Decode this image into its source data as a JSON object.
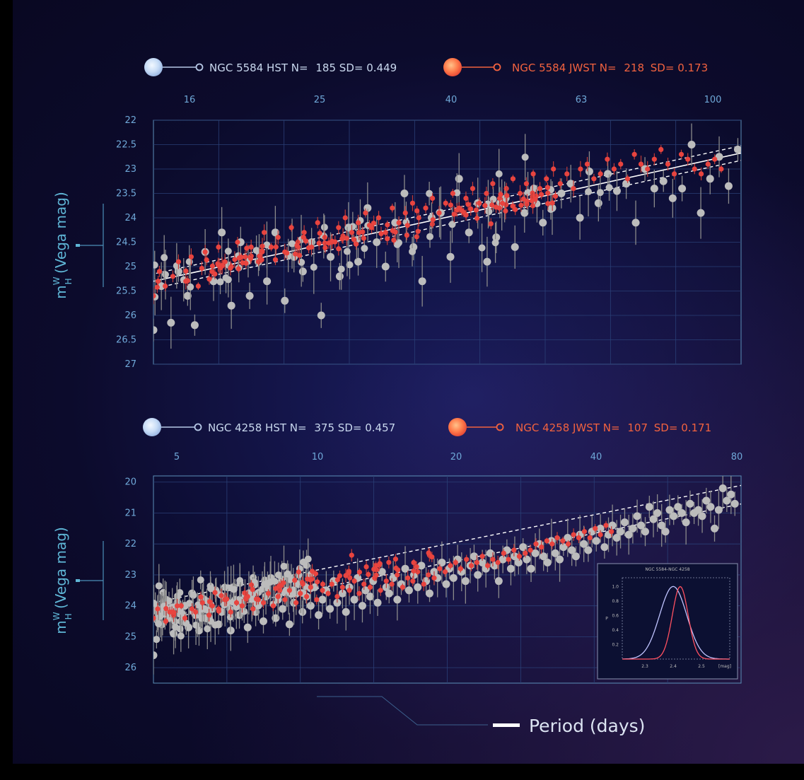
{
  "colors": {
    "hst": "#bcbcbc",
    "jwst": "#e8443f",
    "tick_text": "#6fa8d8",
    "legend_hst_text": "#c9d8ee",
    "legend_jwst_text": "#f2623f",
    "axis_label": "#5fb6d6"
  },
  "panels": [
    {
      "legend": {
        "hst": {
          "galaxy": "NGC 5584",
          "telescope": "HST",
          "n_label": "N=",
          "n": "185",
          "sd_label": "SD=",
          "sd": "0.449"
        },
        "jwst": {
          "galaxy": "NGC 5584",
          "telescope": "JWST",
          "n_label": "N=",
          "n": "218",
          "sd_label": "SD=",
          "sd": "0.173"
        }
      },
      "ylabel": "m_H^W (Vega mag)",
      "ylabel_main": "m",
      "ylabel_sup": "W",
      "ylabel_sub": "H",
      "ylabel_rest": " (Vega mag)"
    },
    {
      "legend": {
        "hst": {
          "galaxy": "NGC 4258",
          "telescope": "HST",
          "n_label": "N=",
          "n": "375",
          "sd_label": "SD=",
          "sd": "0.457"
        },
        "jwst": {
          "galaxy": "NGC 4258",
          "telescope": "JWST",
          "n_label": "N=",
          "n": "107",
          "sd_label": "SD=",
          "sd": "0.171"
        }
      },
      "ylabel": "m_H^W (Vega mag)",
      "ylabel_main": "m",
      "ylabel_sup": "W",
      "ylabel_sub": "H",
      "ylabel_rest": " (Vega mag)"
    }
  ],
  "xlabel": "Period (days)",
  "chart_data": [
    {
      "type": "scatter",
      "x_scale": "log",
      "x_ticks": [
        "16",
        "25",
        "40",
        "63",
        "100"
      ],
      "y_ticks": [
        "22",
        "22.5",
        "23",
        "23.5",
        "24",
        "24.5",
        "25",
        "25.5",
        "26",
        "26.5",
        "27"
      ],
      "xlim": [
        16,
        100
      ],
      "ylim": [
        27,
        22
      ],
      "y_inverted": true,
      "xlabel": "Period (days)",
      "ylabel": "m_H^W (Vega mag)",
      "fit": {
        "slope_per_log10P": -3.3,
        "intercept_at_P16": 25.3,
        "band_halfwidth": 0.15
      },
      "series": [
        {
          "name": "NGC 5584 HST",
          "x": [
            16.0,
            16.4,
            16.9,
            17.3,
            17.8,
            18.2,
            18.8,
            19.3,
            19.8,
            20.4,
            21.0,
            21.6,
            22.2,
            22.8,
            23.4,
            24.1,
            24.8,
            25.5,
            26.2,
            27.0,
            27.8,
            28.6,
            29.4,
            30.3,
            31.2,
            32.1,
            33.0,
            34.0,
            35.0,
            36.0,
            37.0,
            38.1,
            39.2,
            40.4,
            41.5,
            42.8,
            44.0,
            45.3,
            46.6,
            48.0,
            49.4,
            50.9,
            52.4,
            53.9,
            55.5,
            57.1,
            58.8,
            60.5,
            62.3,
            64.1,
            66.0,
            67.9,
            69.9,
            72.0,
            74.1,
            76.3,
            78.5,
            80.8,
            83.2,
            85.7,
            88.2,
            90.8,
            93.4,
            96.2,
            99.0
          ],
          "y": [
            26.3,
            25.4,
            26.15,
            25.1,
            25.6,
            26.2,
            24.7,
            25.3,
            24.3,
            25.8,
            24.5,
            25.6,
            24.9,
            25.3,
            24.3,
            25.7,
            24.8,
            25.1,
            24.5,
            26.0,
            24.8,
            25.2,
            24.2,
            24.9,
            23.8,
            24.5,
            25.0,
            24.1,
            23.5,
            24.6,
            25.3,
            24.0,
            23.9,
            24.8,
            23.2,
            24.3,
            23.7,
            24.9,
            24.4,
            23.6,
            24.6,
            23.9,
            23.4,
            24.1,
            23.8,
            23.5,
            23.3,
            24.0,
            23.05,
            23.7,
            23.1,
            23.45,
            23.3,
            24.1,
            23.0,
            23.4,
            23.25,
            23.6,
            23.4,
            22.5,
            23.9,
            23.2,
            22.75,
            23.35,
            22.6
          ]
        },
        {
          "name": "NGC 5584 JWST",
          "x": [
            16.0,
            16.3,
            16.6,
            17.0,
            17.3,
            17.7,
            18.0,
            18.4,
            18.8,
            19.2,
            19.6,
            20.0,
            20.4,
            20.8,
            21.3,
            21.7,
            22.2,
            22.6,
            23.1,
            23.6,
            24.1,
            24.6,
            25.1,
            25.6,
            26.2,
            26.7,
            27.3,
            27.9,
            28.5,
            29.1,
            29.7,
            30.3,
            31.0,
            31.6,
            32.3,
            33.0,
            33.7,
            34.4,
            35.1,
            35.9,
            36.6,
            37.4,
            38.2,
            39.0,
            39.8,
            40.7,
            41.5,
            42.4,
            43.3,
            44.2,
            45.2,
            46.1,
            47.1,
            48.1,
            49.1,
            50.2,
            51.2,
            52.3,
            53.4,
            54.5,
            55.7,
            56.9,
            58.1,
            59.3,
            60.6,
            61.9,
            63.2,
            64.5,
            65.9,
            67.3,
            68.7,
            70.2,
            71.7,
            73.2,
            74.7,
            76.3,
            77.9,
            79.6,
            81.2,
            83.0,
            84.7,
            86.5,
            88.3,
            90.2,
            92.1,
            94.0
          ],
          "y": [
            25.6,
            25.1,
            25.4,
            25.2,
            24.9,
            25.3,
            24.8,
            25.4,
            24.7,
            25.1,
            24.6,
            24.9,
            25.0,
            24.5,
            24.8,
            24.6,
            24.9,
            24.3,
            24.6,
            24.4,
            24.7,
            24.2,
            24.5,
            24.3,
            24.6,
            24.1,
            24.4,
            24.5,
            24.2,
            24.0,
            24.3,
            24.1,
            23.9,
            24.2,
            24.0,
            24.3,
            23.8,
            24.1,
            23.9,
            23.7,
            24.0,
            23.8,
            23.6,
            23.9,
            23.7,
            23.5,
            23.8,
            23.6,
            23.4,
            23.7,
            23.5,
            23.3,
            23.6,
            23.4,
            23.2,
            23.5,
            23.3,
            23.1,
            23.4,
            23.2,
            23.0,
            23.3,
            23.1,
            23.4,
            23.0,
            22.9,
            23.2,
            23.1,
            22.8,
            23.0,
            22.9,
            23.2,
            22.7,
            22.9,
            23.0,
            22.8,
            22.6,
            22.9,
            23.1,
            22.7,
            22.8,
            23.0,
            23.1,
            22.9,
            22.8,
            23.0
          ]
        }
      ]
    },
    {
      "type": "scatter",
      "x_scale": "log",
      "x_ticks": [
        "5",
        "10",
        "20",
        "40",
        "80"
      ],
      "y_ticks": [
        "20",
        "21",
        "22",
        "23",
        "24",
        "25",
        "26"
      ],
      "xlim": [
        5,
        80
      ],
      "ylim": [
        26.5,
        19.8
      ],
      "y_inverted": true,
      "xlabel": "Period (days)",
      "ylabel": "m_H^W (Vega mag)",
      "fit": {
        "slope_per_log10P": -3.15,
        "intercept_at_P5": 24.2,
        "band_halfwidth": 0.3
      },
      "series": [
        {
          "name": "NGC 4258 HST",
          "x": [
            5.0,
            5.1,
            5.2,
            5.3,
            5.4,
            5.5,
            5.6,
            5.7,
            5.8,
            5.9,
            6.0,
            6.1,
            6.2,
            6.3,
            6.4,
            6.6,
            6.7,
            6.8,
            6.9,
            7.1,
            7.2,
            7.3,
            7.5,
            7.6,
            7.8,
            7.9,
            8.1,
            8.2,
            8.4,
            8.5,
            8.7,
            8.9,
            9.0,
            9.2,
            9.4,
            9.5,
            9.7,
            9.9,
            10.1,
            10.3,
            10.5,
            10.7,
            10.9,
            11.1,
            11.3,
            11.5,
            11.7,
            11.9,
            12.2,
            12.4,
            12.6,
            12.9,
            13.1,
            13.4,
            13.6,
            13.9,
            14.1,
            14.4,
            14.7,
            15.0,
            15.2,
            15.5,
            15.8,
            16.1,
            16.4,
            16.7,
            17.1,
            17.4,
            17.7,
            18.1,
            18.4,
            18.8,
            19.1,
            19.5,
            19.9,
            20.2,
            20.6,
            21.0,
            21.4,
            21.8,
            22.3,
            22.7,
            23.1,
            23.6,
            24.0,
            24.5,
            25.0,
            25.5,
            26.0,
            26.5,
            27.0,
            27.5,
            28.0,
            28.6,
            29.1,
            29.7,
            30.3,
            30.9,
            31.5,
            32.1,
            32.7,
            33.3,
            34.0,
            34.6,
            35.3,
            36.0,
            36.7,
            37.4,
            38.1,
            38.9,
            39.6,
            40.4,
            41.2,
            42.0,
            42.8,
            43.6,
            44.5,
            45.3,
            46.2,
            47.1,
            48.0,
            49.0,
            49.9,
            50.9,
            51.9,
            52.9,
            53.9,
            55.0,
            56.0,
            57.1,
            58.2,
            59.4,
            60.5,
            61.7,
            62.9,
            64.1,
            65.4,
            66.6,
            67.9,
            69.3,
            70.6,
            72.0,
            73.4,
            74.8,
            76.3,
            77.7
          ],
          "y": [
            25.6,
            24.2,
            24.6,
            23.8,
            24.4,
            24.9,
            23.9,
            24.5,
            24.0,
            24.7,
            23.6,
            24.3,
            24.8,
            23.8,
            24.4,
            24.1,
            23.5,
            24.6,
            24.2,
            23.9,
            24.8,
            23.4,
            24.3,
            24.0,
            24.7,
            23.6,
            24.2,
            23.9,
            24.5,
            23.7,
            23.1,
            24.4,
            23.8,
            24.1,
            23.5,
            24.6,
            23.9,
            23.3,
            24.2,
            23.7,
            24.0,
            23.4,
            24.3,
            23.8,
            23.5,
            24.1,
            23.2,
            23.9,
            23.6,
            24.2,
            23.4,
            23.8,
            23.1,
            24.0,
            23.5,
            23.7,
            23.2,
            23.9,
            22.9,
            23.4,
            23.6,
            23.1,
            23.8,
            23.3,
            22.8,
            23.5,
            23.0,
            23.4,
            22.7,
            23.2,
            23.6,
            22.9,
            23.1,
            22.6,
            23.3,
            22.8,
            23.1,
            22.5,
            22.9,
            23.2,
            22.7,
            22.4,
            23.0,
            22.6,
            22.8,
            22.3,
            22.7,
            23.2,
            22.5,
            22.2,
            22.8,
            22.4,
            22.6,
            22.1,
            22.5,
            22.8,
            22.3,
            22.0,
            22.4,
            22.6,
            21.9,
            22.3,
            22.5,
            22.1,
            21.8,
            22.2,
            22.4,
            21.7,
            22.0,
            22.2,
            21.6,
            21.9,
            21.5,
            22.1,
            21.7,
            21.4,
            21.8,
            21.6,
            21.3,
            21.7,
            21.5,
            21.1,
            21.4,
            21.6,
            20.8,
            21.2,
            21.0,
            21.4,
            21.6,
            20.9,
            21.1,
            20.8,
            21.0,
            21.3,
            20.7,
            21.0,
            20.9,
            21.1,
            20.6,
            20.8,
            21.5,
            20.9,
            20.2,
            20.6,
            20.4,
            20.7
          ],
          "extra_dense_range": [
            5,
            10.5
          ]
        },
        {
          "name": "NGC 4258 JWST",
          "x": [
            5.0,
            5.1,
            5.3,
            5.4,
            5.5,
            5.7,
            5.8,
            6.0,
            6.1,
            6.3,
            6.5,
            6.6,
            6.8,
            7.0,
            7.2,
            7.4,
            7.6,
            7.8,
            8.0,
            8.2,
            8.4,
            8.6,
            8.8,
            9.0,
            9.3,
            9.5,
            9.8,
            10.0,
            10.3,
            10.5,
            10.8,
            11.1,
            11.4,
            11.6,
            11.9,
            12.2,
            12.6,
            12.9,
            13.2,
            13.5,
            13.9,
            14.2,
            14.6,
            15.0,
            15.4,
            15.8,
            16.2,
            16.6,
            17.0,
            17.4,
            17.9,
            18.3,
            18.8,
            19.3,
            19.8,
            20.3,
            20.8,
            21.3,
            21.9,
            22.4,
            23.0,
            23.6,
            24.2,
            24.8,
            25.4,
            26.1,
            26.7,
            27.4,
            28.1,
            28.9,
            29.6,
            30.4,
            31.2,
            32.0,
            32.8,
            33.6,
            34.5,
            35.4,
            36.3,
            37.2,
            38.2,
            39.2,
            40.2,
            41.2,
            42.3,
            43.4
          ],
          "y": [
            24.4,
            24.1,
            24.5,
            24.2,
            24.3,
            24.0,
            24.4,
            24.1,
            24.2,
            23.9,
            24.3,
            24.0,
            24.1,
            23.8,
            24.2,
            23.9,
            24.0,
            23.7,
            24.1,
            23.8,
            23.9,
            23.6,
            24.0,
            23.7,
            23.8,
            23.5,
            23.9,
            23.6,
            23.7,
            23.4,
            23.8,
            23.5,
            23.6,
            23.3,
            23.7,
            23.4,
            23.5,
            23.2,
            23.6,
            23.3,
            23.4,
            23.1,
            23.5,
            23.2,
            23.3,
            23.0,
            23.4,
            23.1,
            23.2,
            22.9,
            23.3,
            23.0,
            23.1,
            22.8,
            22.9,
            22.7,
            22.6,
            22.8,
            22.5,
            22.7,
            22.6,
            22.4,
            22.7,
            22.5,
            22.6,
            22.3,
            22.5,
            22.2,
            22.4,
            22.3,
            22.2,
            22.0,
            22.1,
            21.9,
            22.0,
            21.8,
            21.9,
            22.0,
            21.7,
            21.8,
            21.6,
            21.8,
            21.5,
            21.7,
            21.4,
            21.6
          ]
        }
      ],
      "inset": {
        "type": "line",
        "title": "NGC 5584-NGC 4258",
        "ylabel": "P",
        "xlabel": "[mag]",
        "x_ticks": [
          "2.3",
          "2.4",
          "2.5"
        ],
        "y_ticks": [
          "0.2",
          "0.4",
          "0.6",
          "0.8",
          "1.0"
        ],
        "xlim": [
          2.22,
          2.6
        ],
        "ylim": [
          0,
          1.12
        ],
        "series": [
          {
            "name": "HST",
            "kind": "gaussian",
            "mean": 2.4,
            "sigma": 0.048,
            "peak": 1.0,
            "color": "#c0c4ff"
          },
          {
            "name": "JWST",
            "kind": "gaussian",
            "mean": 2.425,
            "sigma": 0.028,
            "peak": 1.0,
            "color": "#ff5060"
          }
        ]
      }
    }
  ]
}
